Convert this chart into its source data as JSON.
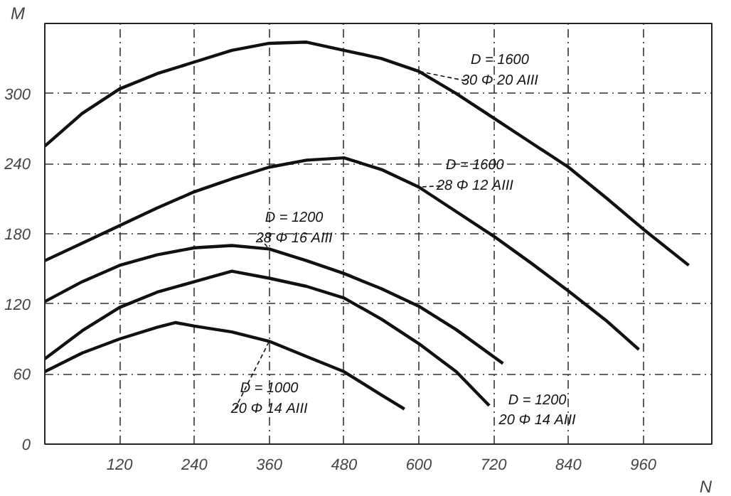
{
  "chart_data": {
    "type": "line",
    "xlabel": "N",
    "ylabel": "M",
    "xlim": [
      0,
      1070
    ],
    "ylim": [
      0,
      360
    ],
    "xticks": [
      120,
      240,
      360,
      480,
      600,
      720,
      840,
      960
    ],
    "yticks": [
      0,
      60,
      120,
      180,
      240,
      300
    ],
    "grid": true,
    "line_style": "solid",
    "series": [
      {
        "name": "D = 1600\n30 Φ 20 AIII",
        "color": "#111111",
        "x": [
          0,
          60,
          120,
          180,
          240,
          300,
          360,
          420,
          480,
          540,
          600,
          660,
          720,
          780,
          840,
          900,
          960,
          1033
        ],
        "values": [
          255,
          283,
          304,
          317,
          327,
          337,
          343,
          344,
          337,
          330,
          319,
          300,
          279,
          258,
          237,
          211,
          184,
          153
        ]
      },
      {
        "name": "D = 1600\n28 Φ 12 AIII",
        "color": "#111111",
        "x": [
          0,
          60,
          120,
          180,
          240,
          300,
          360,
          420,
          480,
          540,
          600,
          660,
          720,
          780,
          840,
          900,
          953
        ],
        "values": [
          157,
          172,
          187,
          202,
          216,
          227,
          237,
          243,
          245,
          235,
          220,
          199,
          178,
          155,
          131,
          106,
          81
        ]
      },
      {
        "name": "D = 1200\n28 Φ 16 AIII",
        "color": "#111111",
        "x": [
          0,
          60,
          120,
          180,
          240,
          300,
          360,
          420,
          480,
          540,
          600,
          660,
          735
        ],
        "values": [
          122,
          139,
          153,
          162,
          168,
          170,
          167,
          157,
          146,
          133,
          118,
          98,
          69
        ]
      },
      {
        "name": "D = 1200\n20 Φ 14 AIII",
        "color": "#111111",
        "x": [
          0,
          60,
          120,
          180,
          240,
          300,
          360,
          420,
          480,
          540,
          600,
          660,
          713
        ],
        "values": [
          73,
          97,
          117,
          130,
          139,
          148,
          142,
          135,
          125,
          107,
          86,
          62,
          33
        ]
      },
      {
        "name": "D = 1000\n20 Φ 14 AIII",
        "color": "#111111",
        "x": [
          0,
          60,
          120,
          180,
          210,
          240,
          300,
          360,
          420,
          480,
          540,
          577
        ],
        "values": [
          62,
          78,
          90,
          100,
          104,
          101,
          96,
          88,
          75,
          62,
          42,
          30
        ]
      }
    ]
  }
}
